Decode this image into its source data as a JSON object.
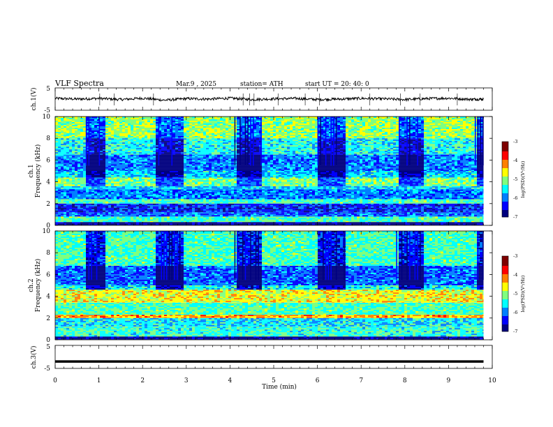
{
  "header": {
    "title": "VLF  Spectra",
    "date": "Mar.9  , 2025",
    "station": "station= ATH",
    "start_ut": "start  UT  =   20: 40: 0"
  },
  "chart_data": [
    {
      "type": "line",
      "panel": "ch1-voltage",
      "ylabel": "ch.1(V)",
      "ylim": [
        -5,
        5
      ],
      "yticks": [
        "5",
        "-5"
      ],
      "xlim": [
        0,
        10
      ],
      "series": [
        {
          "x": [
            0.0,
            0.5,
            1.0,
            1.5,
            2.0,
            2.5,
            3.0,
            3.5,
            4.0,
            4.5,
            5.0,
            5.5,
            6.0,
            6.5,
            7.0,
            7.5,
            8.0,
            8.5,
            9.0,
            9.5,
            9.8
          ],
          "values": [
            0.3,
            0.0,
            0.3,
            -0.2,
            0.4,
            -0.5,
            0.2,
            0.0,
            0.4,
            -0.2,
            0.1,
            0.3,
            -0.2,
            0.0,
            0.3,
            0.1,
            -0.2,
            0.2,
            0.4,
            -0.1,
            0.0
          ]
        }
      ]
    },
    {
      "type": "heatmap",
      "panel": "ch1-spectrogram",
      "ylabel": "ch.1",
      "ylabel2": "Frequency (kHz)",
      "xlim": [
        0,
        10
      ],
      "ylim": [
        0,
        10
      ],
      "yticks": [
        "0",
        "2",
        "4",
        "6",
        "8",
        "10"
      ],
      "xticks": [
        "0",
        "1",
        "2",
        "3",
        "4",
        "5",
        "6",
        "7",
        "8",
        "9",
        "10"
      ],
      "data_end_min": 9.8,
      "colorbar": {
        "label": "log(PSD)(V²/Hz)",
        "range": [
          -7,
          -3
        ],
        "ticks": [
          "-3",
          "-4",
          "-5",
          "-6",
          "-7"
        ]
      },
      "band_levels_by_freq_khz": [
        {
          "from": 0.0,
          "to": 0.3,
          "level": -6.8
        },
        {
          "from": 0.3,
          "to": 0.8,
          "level": -5.2
        },
        {
          "from": 0.8,
          "to": 1.2,
          "level": -6.0
        },
        {
          "from": 1.2,
          "to": 2.0,
          "level": -6.3
        },
        {
          "from": 2.0,
          "to": 2.4,
          "level": -5.2
        },
        {
          "from": 2.4,
          "to": 3.3,
          "level": -5.9
        },
        {
          "from": 3.3,
          "to": 3.6,
          "level": -5.6
        },
        {
          "from": 3.6,
          "to": 4.4,
          "level": -5.0
        },
        {
          "from": 4.4,
          "to": 5.0,
          "level": -5.6
        },
        {
          "from": 5.0,
          "to": 6.5,
          "level": -5.9
        },
        {
          "from": 6.5,
          "to": 8.0,
          "level": -5.4
        },
        {
          "from": 8.0,
          "to": 10.0,
          "level": -4.9
        }
      ],
      "quiet_intervals_min": [
        [
          0.7,
          1.1
        ],
        [
          2.3,
          2.9
        ],
        [
          4.1,
          4.7
        ],
        [
          6.0,
          6.6
        ],
        [
          7.8,
          8.4
        ],
        [
          9.6,
          9.8
        ]
      ]
    },
    {
      "type": "heatmap",
      "panel": "ch2-spectrogram",
      "ylabel": "ch.2",
      "ylabel2": "Frequency (kHz)",
      "xlim": [
        0,
        10
      ],
      "ylim": [
        0,
        10
      ],
      "yticks": [
        "0",
        "2",
        "4",
        "6",
        "8",
        "10"
      ],
      "xticks": [
        "0",
        "1",
        "2",
        "3",
        "4",
        "5",
        "6",
        "7",
        "8",
        "9",
        "10"
      ],
      "data_end_min": 9.8,
      "colorbar": {
        "label": "log(PSD)(V²/Hz)",
        "range": [
          -7,
          -3
        ],
        "ticks": [
          "-3",
          "-4",
          "-5",
          "-6",
          "-7"
        ]
      },
      "band_levels_by_freq_khz": [
        {
          "from": 0.0,
          "to": 0.3,
          "level": -6.8
        },
        {
          "from": 0.3,
          "to": 1.2,
          "level": -5.3
        },
        {
          "from": 1.2,
          "to": 2.0,
          "level": -5.5
        },
        {
          "from": 2.0,
          "to": 2.3,
          "level": -4.2
        },
        {
          "from": 2.3,
          "to": 3.4,
          "level": -5.2
        },
        {
          "from": 3.4,
          "to": 4.6,
          "level": -4.6
        },
        {
          "from": 4.6,
          "to": 5.0,
          "level": -5.4
        },
        {
          "from": 5.0,
          "to": 6.8,
          "level": -6.0
        },
        {
          "from": 6.8,
          "to": 10.0,
          "level": -5.2
        }
      ],
      "quiet_intervals_min": [
        [
          0.7,
          1.1
        ],
        [
          2.3,
          2.9
        ],
        [
          4.1,
          4.7
        ],
        [
          6.0,
          6.6
        ],
        [
          7.8,
          8.4
        ],
        [
          9.6,
          9.8
        ]
      ]
    },
    {
      "type": "line",
      "panel": "ch3-voltage",
      "ylabel": "ch.3(V)",
      "ylim": [
        -5,
        5
      ],
      "yticks": [
        "5",
        "-5"
      ],
      "xlim": [
        0,
        10
      ],
      "xlabel": "Time  (min)",
      "xticks": [
        "0",
        "1",
        "2",
        "3",
        "4",
        "5",
        "6",
        "7",
        "8",
        "9",
        "10"
      ],
      "series": [
        {
          "x": [
            0.0,
            9.8
          ],
          "values": [
            -2.0,
            -2.0
          ]
        }
      ]
    }
  ],
  "colors": {
    "jet": [
      "#00007f",
      "#0000ff",
      "#007fff",
      "#00ffff",
      "#7fff7f",
      "#ffff00",
      "#ff7f00",
      "#ff0000",
      "#7f0000"
    ],
    "trace": "#000000"
  }
}
